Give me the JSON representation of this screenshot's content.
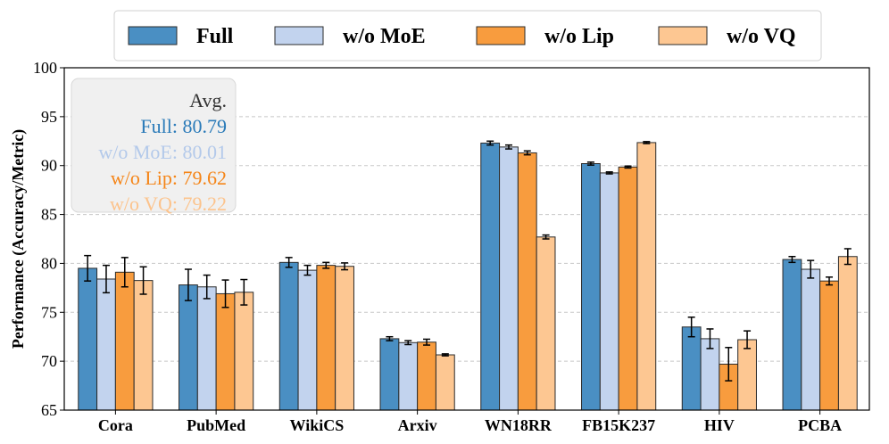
{
  "chart_data": {
    "type": "bar",
    "title": "",
    "xlabel": "",
    "ylabel": "Performance (Accuracy/Metric)",
    "ylim": [
      65,
      100
    ],
    "yticks": [
      65,
      70,
      75,
      80,
      85,
      90,
      95,
      100
    ],
    "grid": true,
    "legend_position": "top",
    "categories": [
      "Cora",
      "PubMed",
      "WikiCS",
      "Arxiv",
      "WN18RR",
      "FB15K237",
      "HIV",
      "PCBA"
    ],
    "series": [
      {
        "name": "Full",
        "color": "#4a8fc3",
        "values": [
          79.5,
          77.8,
          80.1,
          72.3,
          92.3,
          90.2,
          73.5,
          80.4
        ],
        "errors": [
          1.3,
          1.6,
          0.5,
          0.2,
          0.2,
          0.15,
          1.0,
          0.3
        ]
      },
      {
        "name": "w/o MoE",
        "color": "#c2d3ee",
        "values": [
          78.4,
          77.6,
          79.3,
          71.9,
          91.9,
          89.25,
          72.3,
          79.4
        ],
        "errors": [
          1.4,
          1.2,
          0.5,
          0.2,
          0.2,
          0.1,
          1.0,
          0.9
        ]
      },
      {
        "name": "w/o Lip",
        "color": "#f89c3e",
        "values": [
          79.1,
          76.9,
          79.8,
          71.95,
          91.3,
          89.85,
          69.7,
          78.2
        ],
        "errors": [
          1.5,
          1.4,
          0.3,
          0.3,
          0.2,
          0.1,
          1.7,
          0.4
        ]
      },
      {
        "name": "w/o VQ",
        "color": "#fdc792",
        "values": [
          78.25,
          77.05,
          79.7,
          70.65,
          82.7,
          92.35,
          72.2,
          80.7
        ],
        "errors": [
          1.4,
          1.3,
          0.35,
          0.1,
          0.2,
          0.1,
          0.9,
          0.8
        ]
      }
    ],
    "annotation": {
      "heading": "Avg.",
      "lines": [
        {
          "label": "Full: ",
          "value": "80.79",
          "color": "#2b7bb9"
        },
        {
          "label": "w/o MoE: ",
          "value": "80.01",
          "color": "#b3c9ea"
        },
        {
          "label": "w/o Lip: ",
          "value": "79.62",
          "color": "#f58518"
        },
        {
          "label": "w/o VQ: ",
          "value": "79.22",
          "color": "#fcc38c"
        }
      ]
    }
  }
}
